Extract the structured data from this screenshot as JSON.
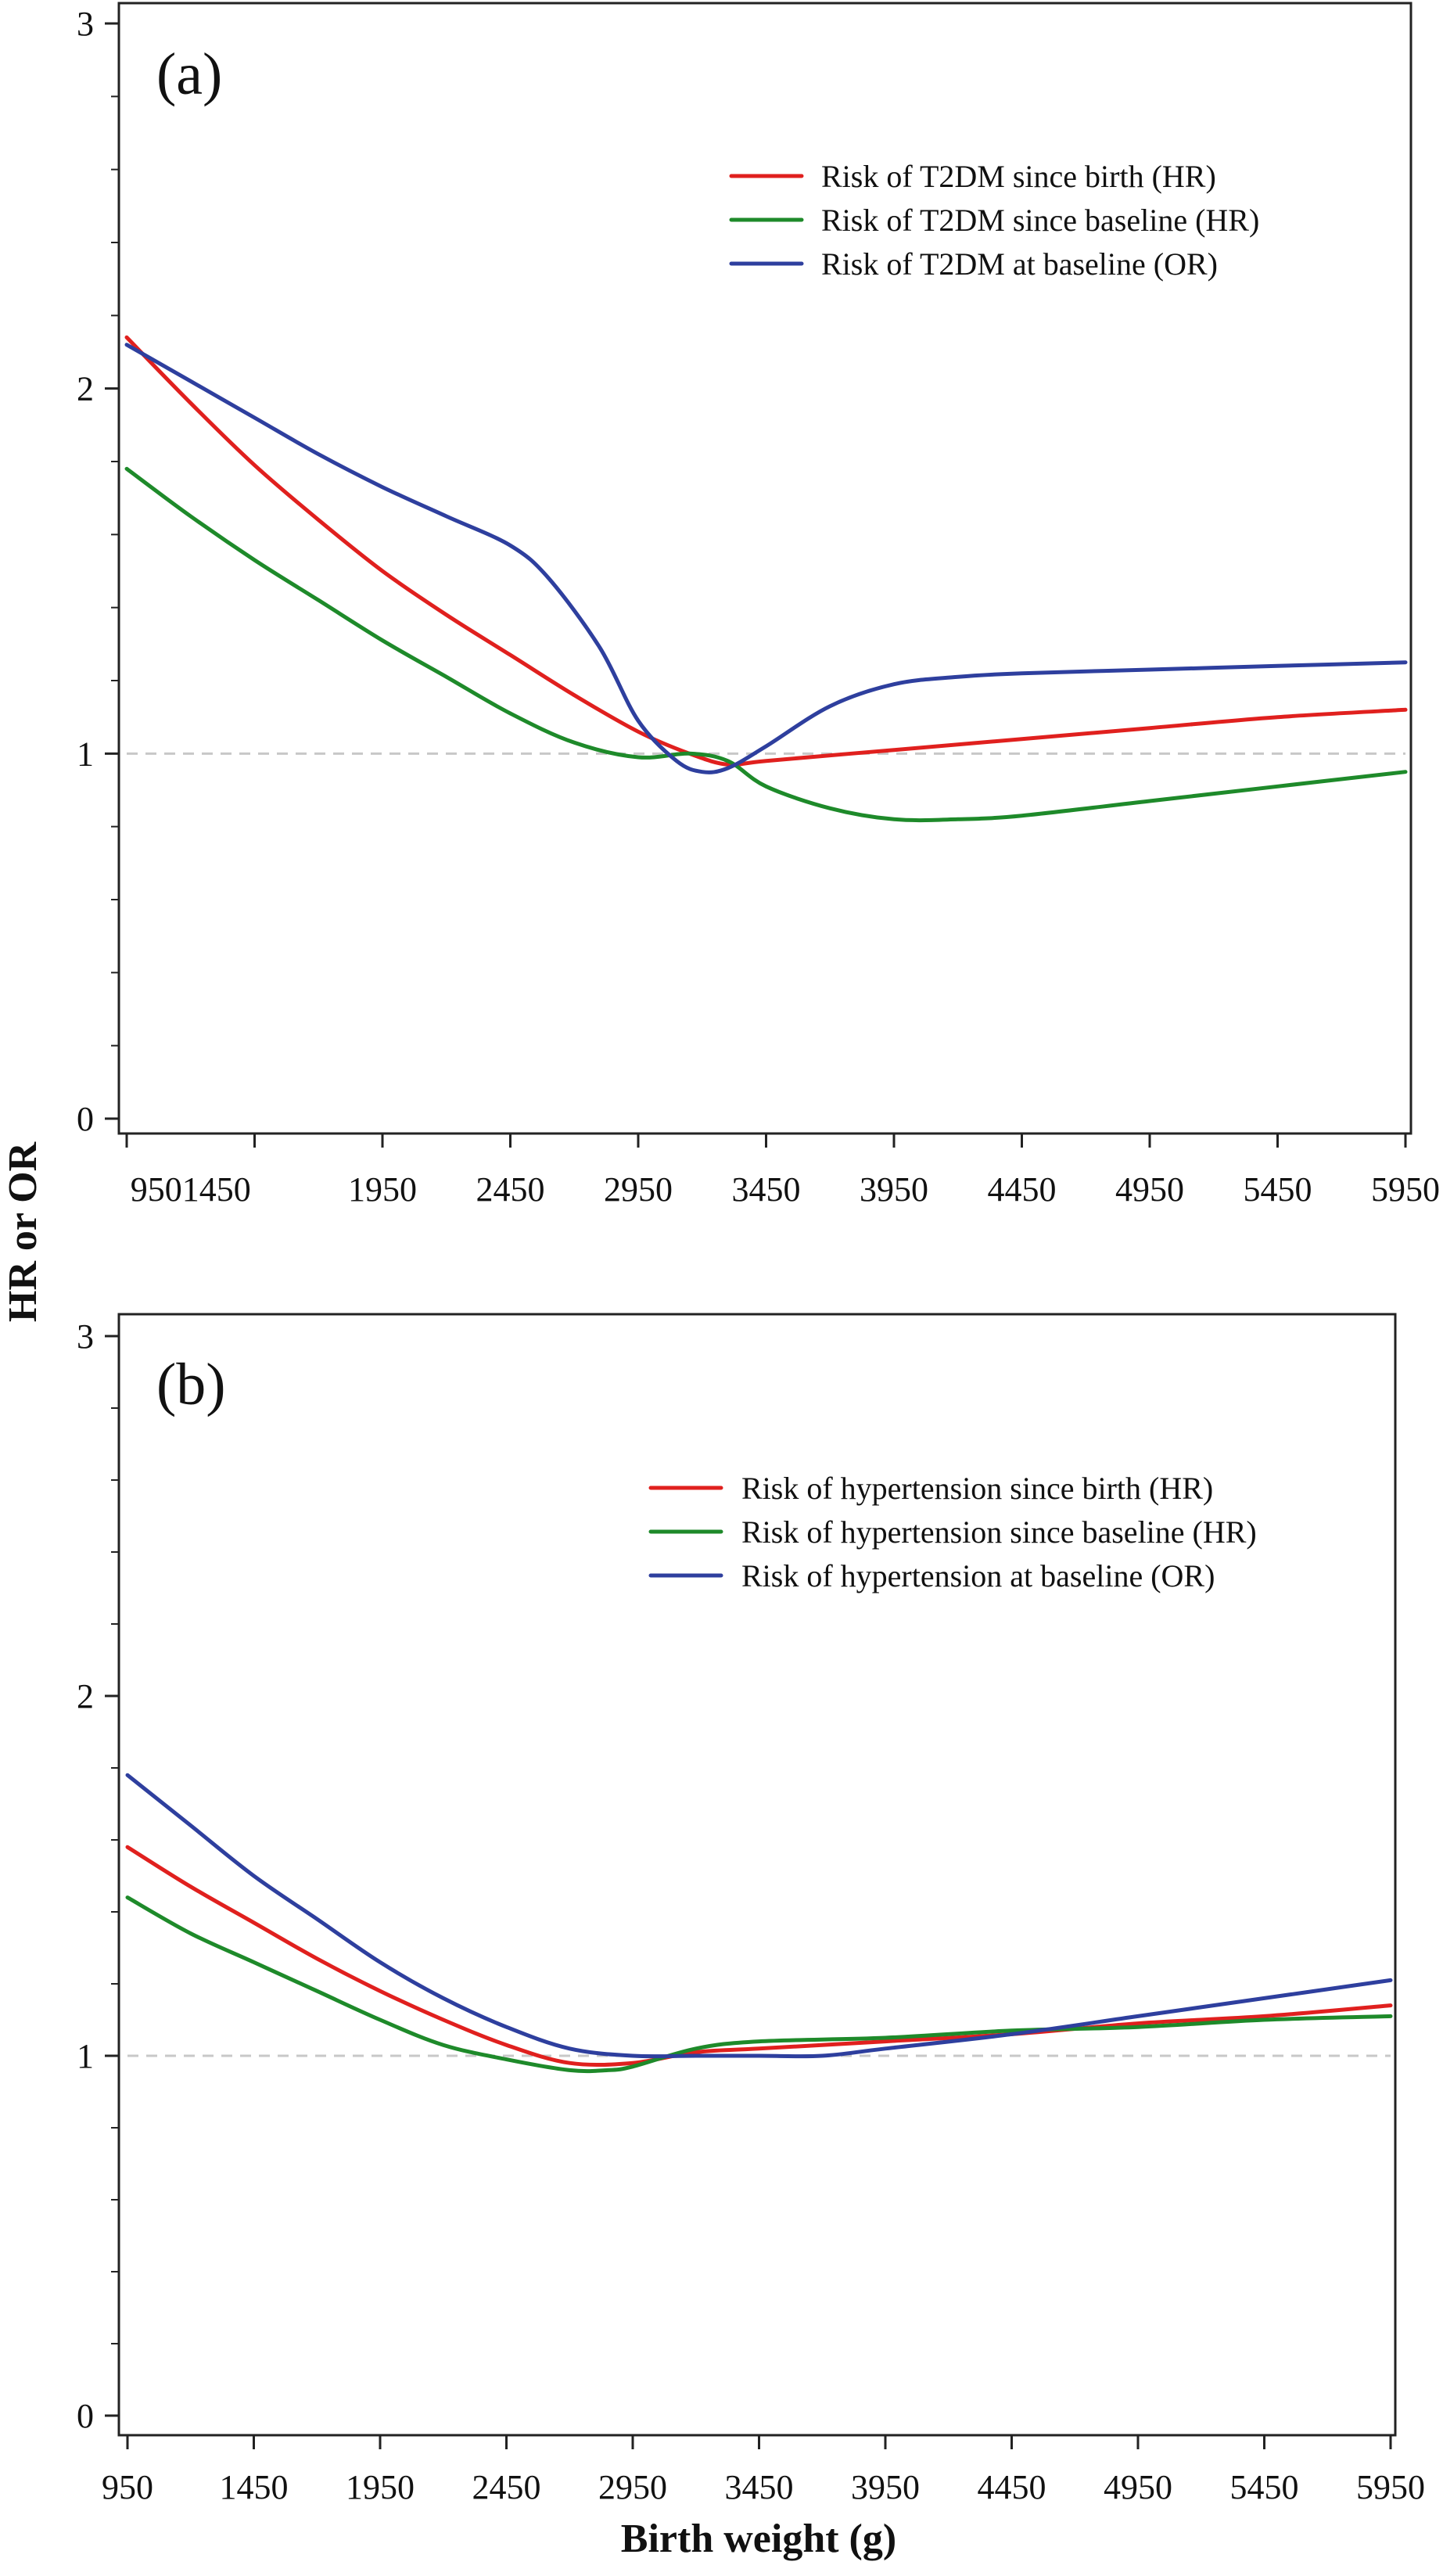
{
  "figure": {
    "ylabel": "HR or OR",
    "xlabel": "Birth weight (g)"
  },
  "chart_data": [
    {
      "type": "line",
      "panel_label": "(a)",
      "xlim": [
        950,
        5950
      ],
      "ylim": [
        0,
        3
      ],
      "x_ticks": [
        950,
        1450,
        1950,
        2450,
        2950,
        3450,
        3950,
        4450,
        4950,
        5450,
        5950
      ],
      "x_tick_labels": [
        "9501450",
        "1950",
        "2450",
        "2950",
        "3450",
        "3950",
        "4450",
        "4950",
        "5450",
        "5950"
      ],
      "x_tick_label_positions": [
        1200,
        1950,
        2450,
        2950,
        3450,
        3950,
        4450,
        4950,
        5450,
        5950
      ],
      "y_ticks": [
        0,
        1,
        2,
        3
      ],
      "y_tick_labels": [
        "0",
        "1",
        "2",
        "3"
      ],
      "y_minor_ticks": [
        0.2,
        0.4,
        0.6,
        0.8,
        1.2,
        1.4,
        1.6,
        1.8,
        2.2,
        2.4,
        2.6,
        2.8
      ],
      "reference_line": 1,
      "grid": false,
      "legend_position": "top-right",
      "series": [
        {
          "name": "Risk of T2DM since birth (HR)",
          "color": "#e0201e",
          "points": [
            [
              950,
              2.14
            ],
            [
              1200,
              1.96
            ],
            [
              1450,
              1.79
            ],
            [
              1700,
              1.64
            ],
            [
              1950,
              1.5
            ],
            [
              2200,
              1.38
            ],
            [
              2450,
              1.27
            ],
            [
              2700,
              1.16
            ],
            [
              2950,
              1.06
            ],
            [
              3150,
              1.0
            ],
            [
              3300,
              0.97
            ],
            [
              3450,
              0.98
            ],
            [
              3950,
              1.01
            ],
            [
              4450,
              1.04
            ],
            [
              4950,
              1.07
            ],
            [
              5450,
              1.1
            ],
            [
              5950,
              1.12
            ]
          ]
        },
        {
          "name": "Risk of T2DM since baseline (HR)",
          "color": "#1e8a2a",
          "points": [
            [
              950,
              1.78
            ],
            [
              1200,
              1.65
            ],
            [
              1450,
              1.53
            ],
            [
              1700,
              1.42
            ],
            [
              1950,
              1.31
            ],
            [
              2200,
              1.21
            ],
            [
              2450,
              1.11
            ],
            [
              2700,
              1.03
            ],
            [
              2950,
              0.99
            ],
            [
              3150,
              1.0
            ],
            [
              3300,
              0.98
            ],
            [
              3450,
              0.91
            ],
            [
              3700,
              0.85
            ],
            [
              3950,
              0.82
            ],
            [
              4200,
              0.82
            ],
            [
              4450,
              0.83
            ],
            [
              4950,
              0.87
            ],
            [
              5450,
              0.91
            ],
            [
              5950,
              0.95
            ]
          ]
        },
        {
          "name": "Risk of T2DM at baseline (OR)",
          "color": "#2e3f9e",
          "points": [
            [
              950,
              2.12
            ],
            [
              1200,
              2.02
            ],
            [
              1450,
              1.92
            ],
            [
              1700,
              1.82
            ],
            [
              1950,
              1.73
            ],
            [
              2200,
              1.65
            ],
            [
              2450,
              1.57
            ],
            [
              2600,
              1.48
            ],
            [
              2800,
              1.29
            ],
            [
              2950,
              1.09
            ],
            [
              3100,
              0.98
            ],
            [
              3200,
              0.95
            ],
            [
              3300,
              0.96
            ],
            [
              3450,
              1.02
            ],
            [
              3700,
              1.13
            ],
            [
              3950,
              1.19
            ],
            [
              4200,
              1.21
            ],
            [
              4450,
              1.22
            ],
            [
              4950,
              1.23
            ],
            [
              5450,
              1.24
            ],
            [
              5950,
              1.25
            ]
          ]
        }
      ]
    },
    {
      "type": "line",
      "panel_label": "(b)",
      "xlim": [
        950,
        5950
      ],
      "ylim": [
        0,
        3
      ],
      "x_ticks": [
        950,
        1450,
        1950,
        2450,
        2950,
        3450,
        3950,
        4450,
        4950,
        5450,
        5950
      ],
      "x_tick_labels": [
        "950",
        "1450",
        "1950",
        "2450",
        "2950",
        "3450",
        "3950",
        "4450",
        "4950",
        "5450",
        "5950"
      ],
      "x_tick_label_positions": [
        950,
        1450,
        1950,
        2450,
        2950,
        3450,
        3950,
        4450,
        4950,
        5450,
        5950
      ],
      "y_ticks": [
        0,
        1,
        2,
        3
      ],
      "y_tick_labels": [
        "0",
        "1",
        "2",
        "3"
      ],
      "y_minor_ticks": [
        0.2,
        0.4,
        0.6,
        0.8,
        1.2,
        1.4,
        1.6,
        1.8,
        2.2,
        2.4,
        2.6,
        2.8
      ],
      "reference_line": 1,
      "grid": false,
      "legend_position": "top-right",
      "series": [
        {
          "name": "Risk of hypertension since birth (HR)",
          "color": "#e0201e",
          "points": [
            [
              950,
              1.58
            ],
            [
              1200,
              1.47
            ],
            [
              1450,
              1.37
            ],
            [
              1700,
              1.27
            ],
            [
              1950,
              1.18
            ],
            [
              2200,
              1.1
            ],
            [
              2450,
              1.03
            ],
            [
              2700,
              0.98
            ],
            [
              2950,
              0.98
            ],
            [
              3200,
              1.01
            ],
            [
              3450,
              1.02
            ],
            [
              3950,
              1.04
            ],
            [
              4450,
              1.06
            ],
            [
              4950,
              1.09
            ],
            [
              5450,
              1.11
            ],
            [
              5950,
              1.14
            ]
          ]
        },
        {
          "name": "Risk of hypertension since baseline (HR)",
          "color": "#1e8a2a",
          "points": [
            [
              950,
              1.44
            ],
            [
              1200,
              1.34
            ],
            [
              1450,
              1.26
            ],
            [
              1700,
              1.18
            ],
            [
              1950,
              1.1
            ],
            [
              2200,
              1.03
            ],
            [
              2450,
              0.99
            ],
            [
              2700,
              0.96
            ],
            [
              2850,
              0.96
            ],
            [
              2950,
              0.97
            ],
            [
              3200,
              1.02
            ],
            [
              3450,
              1.04
            ],
            [
              3950,
              1.05
            ],
            [
              4450,
              1.07
            ],
            [
              4950,
              1.08
            ],
            [
              5450,
              1.1
            ],
            [
              5950,
              1.11
            ]
          ]
        },
        {
          "name": "Risk of hypertension at baseline (OR)",
          "color": "#2e3f9e",
          "points": [
            [
              950,
              1.78
            ],
            [
              1200,
              1.64
            ],
            [
              1450,
              1.5
            ],
            [
              1700,
              1.38
            ],
            [
              1950,
              1.26
            ],
            [
              2200,
              1.16
            ],
            [
              2450,
              1.08
            ],
            [
              2700,
              1.02
            ],
            [
              2950,
              1.0
            ],
            [
              3200,
              1.0
            ],
            [
              3450,
              1.0
            ],
            [
              3700,
              1.0
            ],
            [
              3950,
              1.02
            ],
            [
              4450,
              1.06
            ],
            [
              4950,
              1.11
            ],
            [
              5450,
              1.16
            ],
            [
              5950,
              1.21
            ]
          ]
        }
      ]
    }
  ]
}
